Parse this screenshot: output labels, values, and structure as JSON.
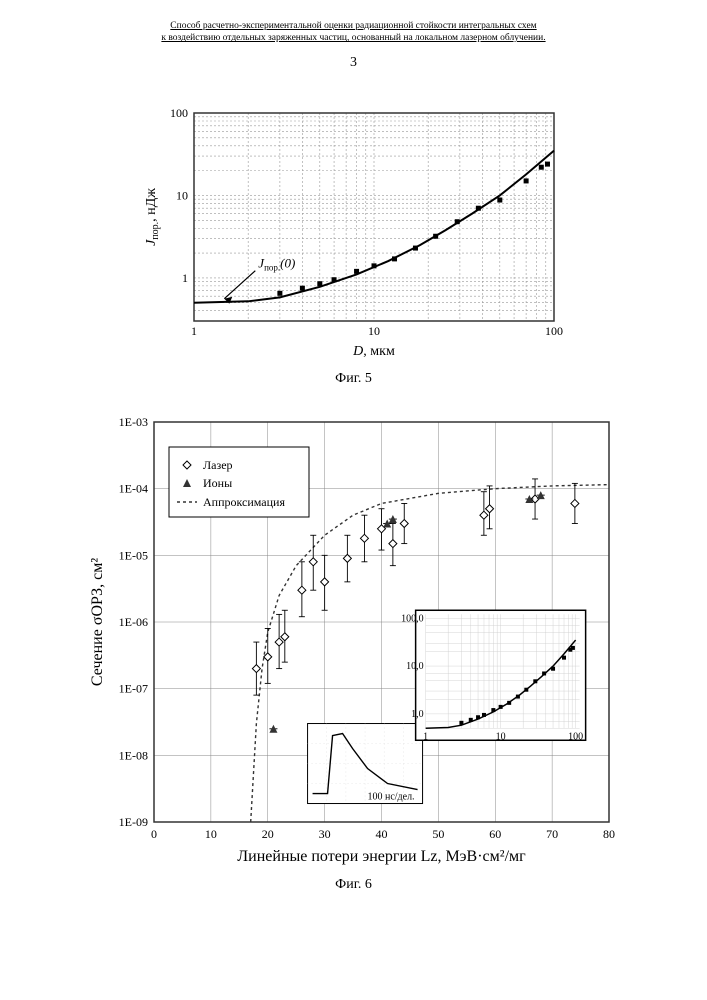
{
  "header": {
    "line1": "Способ расчетно-экспериментальной оценки радиационной стойкости интегральных схем",
    "line2": "к воздействию отдельных заряженных частиц, основанный на локальном лазерном облучении."
  },
  "page_number": "3",
  "fig5": {
    "caption": "Фиг. 5",
    "xlabel": "D, мкм",
    "ylabel": "Jпор., нДж",
    "annotation": "Jпор.(0)",
    "xlim": [
      1,
      100
    ],
    "ylim": [
      0.3,
      100
    ],
    "xticks": [
      1,
      10,
      100
    ],
    "yticks": [
      1,
      10,
      100
    ],
    "points": [
      {
        "x": 3,
        "y": 0.65
      },
      {
        "x": 4,
        "y": 0.75
      },
      {
        "x": 5,
        "y": 0.85
      },
      {
        "x": 6,
        "y": 0.95
      },
      {
        "x": 8,
        "y": 1.2
      },
      {
        "x": 10,
        "y": 1.4
      },
      {
        "x": 13,
        "y": 1.7
      },
      {
        "x": 17,
        "y": 2.3
      },
      {
        "x": 22,
        "y": 3.2
      },
      {
        "x": 29,
        "y": 4.8
      },
      {
        "x": 38,
        "y": 7.0
      },
      {
        "x": 50,
        "y": 8.8
      },
      {
        "x": 70,
        "y": 15
      },
      {
        "x": 85,
        "y": 22
      },
      {
        "x": 92,
        "y": 24
      }
    ],
    "curve": [
      {
        "x": 1,
        "y": 0.5
      },
      {
        "x": 2,
        "y": 0.52
      },
      {
        "x": 3,
        "y": 0.58
      },
      {
        "x": 5,
        "y": 0.78
      },
      {
        "x": 8,
        "y": 1.1
      },
      {
        "x": 12,
        "y": 1.6
      },
      {
        "x": 18,
        "y": 2.5
      },
      {
        "x": 25,
        "y": 3.8
      },
      {
        "x": 35,
        "y": 6.0
      },
      {
        "x": 50,
        "y": 10
      },
      {
        "x": 70,
        "y": 18
      },
      {
        "x": 100,
        "y": 35
      }
    ],
    "colors": {
      "marker": "#000000",
      "line": "#000000",
      "grid": "#b0b0b0",
      "bg": "#ffffff"
    },
    "marker_size": 5,
    "line_width": 2
  },
  "fig6": {
    "caption": "Фиг. 6",
    "xlabel": "Линейные потери энергии Lz, МэВ·см²/мг",
    "ylabel": "Сечение σОРЗ, см²",
    "xlim": [
      0,
      80
    ],
    "ylim": [
      1e-09,
      0.001
    ],
    "xticks": [
      0,
      10,
      20,
      30,
      40,
      50,
      60,
      70,
      80
    ],
    "yticks_exp": [
      -9,
      -8,
      -7,
      -6,
      -5,
      -4,
      -3
    ],
    "legend": {
      "laser": "Лазер",
      "ions": "Ионы",
      "approx": "Аппроксимация"
    },
    "laser_points": [
      {
        "x": 18,
        "y": 2e-07,
        "elo": 8e-08,
        "ehi": 5e-07
      },
      {
        "x": 20,
        "y": 3e-07,
        "elo": 1.2e-07,
        "ehi": 8e-07
      },
      {
        "x": 22,
        "y": 5e-07,
        "elo": 2e-07,
        "ehi": 1.3e-06
      },
      {
        "x": 23,
        "y": 6e-07,
        "elo": 2.5e-07,
        "ehi": 1.5e-06
      },
      {
        "x": 26,
        "y": 3e-06,
        "elo": 1.2e-06,
        "ehi": 8e-06
      },
      {
        "x": 28,
        "y": 8e-06,
        "elo": 3e-06,
        "ehi": 2e-05
      },
      {
        "x": 30,
        "y": 4e-06,
        "elo": 1.5e-06,
        "ehi": 1e-05
      },
      {
        "x": 34,
        "y": 9e-06,
        "elo": 4e-06,
        "ehi": 2e-05
      },
      {
        "x": 37,
        "y": 1.8e-05,
        "elo": 8e-06,
        "ehi": 4e-05
      },
      {
        "x": 40,
        "y": 2.5e-05,
        "elo": 1.2e-05,
        "ehi": 5e-05
      },
      {
        "x": 42,
        "y": 1.5e-05,
        "elo": 7e-06,
        "ehi": 3e-05
      },
      {
        "x": 44,
        "y": 3e-05,
        "elo": 1.5e-05,
        "ehi": 6e-05
      },
      {
        "x": 58,
        "y": 4e-05,
        "elo": 2e-05,
        "ehi": 9e-05
      },
      {
        "x": 59,
        "y": 5e-05,
        "elo": 2.5e-05,
        "ehi": 0.00011
      },
      {
        "x": 67,
        "y": 7e-05,
        "elo": 3.5e-05,
        "ehi": 0.00014
      },
      {
        "x": 74,
        "y": 6e-05,
        "elo": 3e-05,
        "ehi": 0.00012
      }
    ],
    "ion_points": [
      {
        "x": 21,
        "y": 2.5e-08
      },
      {
        "x": 41,
        "y": 3e-05
      },
      {
        "x": 42,
        "y": 3.5e-05
      },
      {
        "x": 66,
        "y": 7e-05
      },
      {
        "x": 68,
        "y": 8e-05
      }
    ],
    "approx_curve": [
      {
        "x": 17,
        "y": 1e-09
      },
      {
        "x": 18,
        "y": 3e-08
      },
      {
        "x": 19,
        "y": 2e-07
      },
      {
        "x": 20,
        "y": 7e-07
      },
      {
        "x": 22,
        "y": 2.5e-06
      },
      {
        "x": 25,
        "y": 7e-06
      },
      {
        "x": 30,
        "y": 2e-05
      },
      {
        "x": 35,
        "y": 4e-05
      },
      {
        "x": 40,
        "y": 6e-05
      },
      {
        "x": 50,
        "y": 8.5e-05
      },
      {
        "x": 60,
        "y": 0.0001
      },
      {
        "x": 70,
        "y": 0.00011
      },
      {
        "x": 80,
        "y": 0.000115
      }
    ],
    "inset_pulse": {
      "xlabel": "100 нс/дел."
    },
    "inset_right": {
      "xlim": [
        1,
        100
      ],
      "ylim": [
        0.5,
        100
      ],
      "xticks": [
        "1",
        "10",
        "100"
      ],
      "yticks": [
        "1,0",
        "10,0",
        "100,0"
      ]
    },
    "colors": {
      "bg": "#ffffff",
      "grid": "#808080",
      "laser_marker": "#333333",
      "ion_marker": "#333333",
      "approx": "#333333"
    }
  }
}
